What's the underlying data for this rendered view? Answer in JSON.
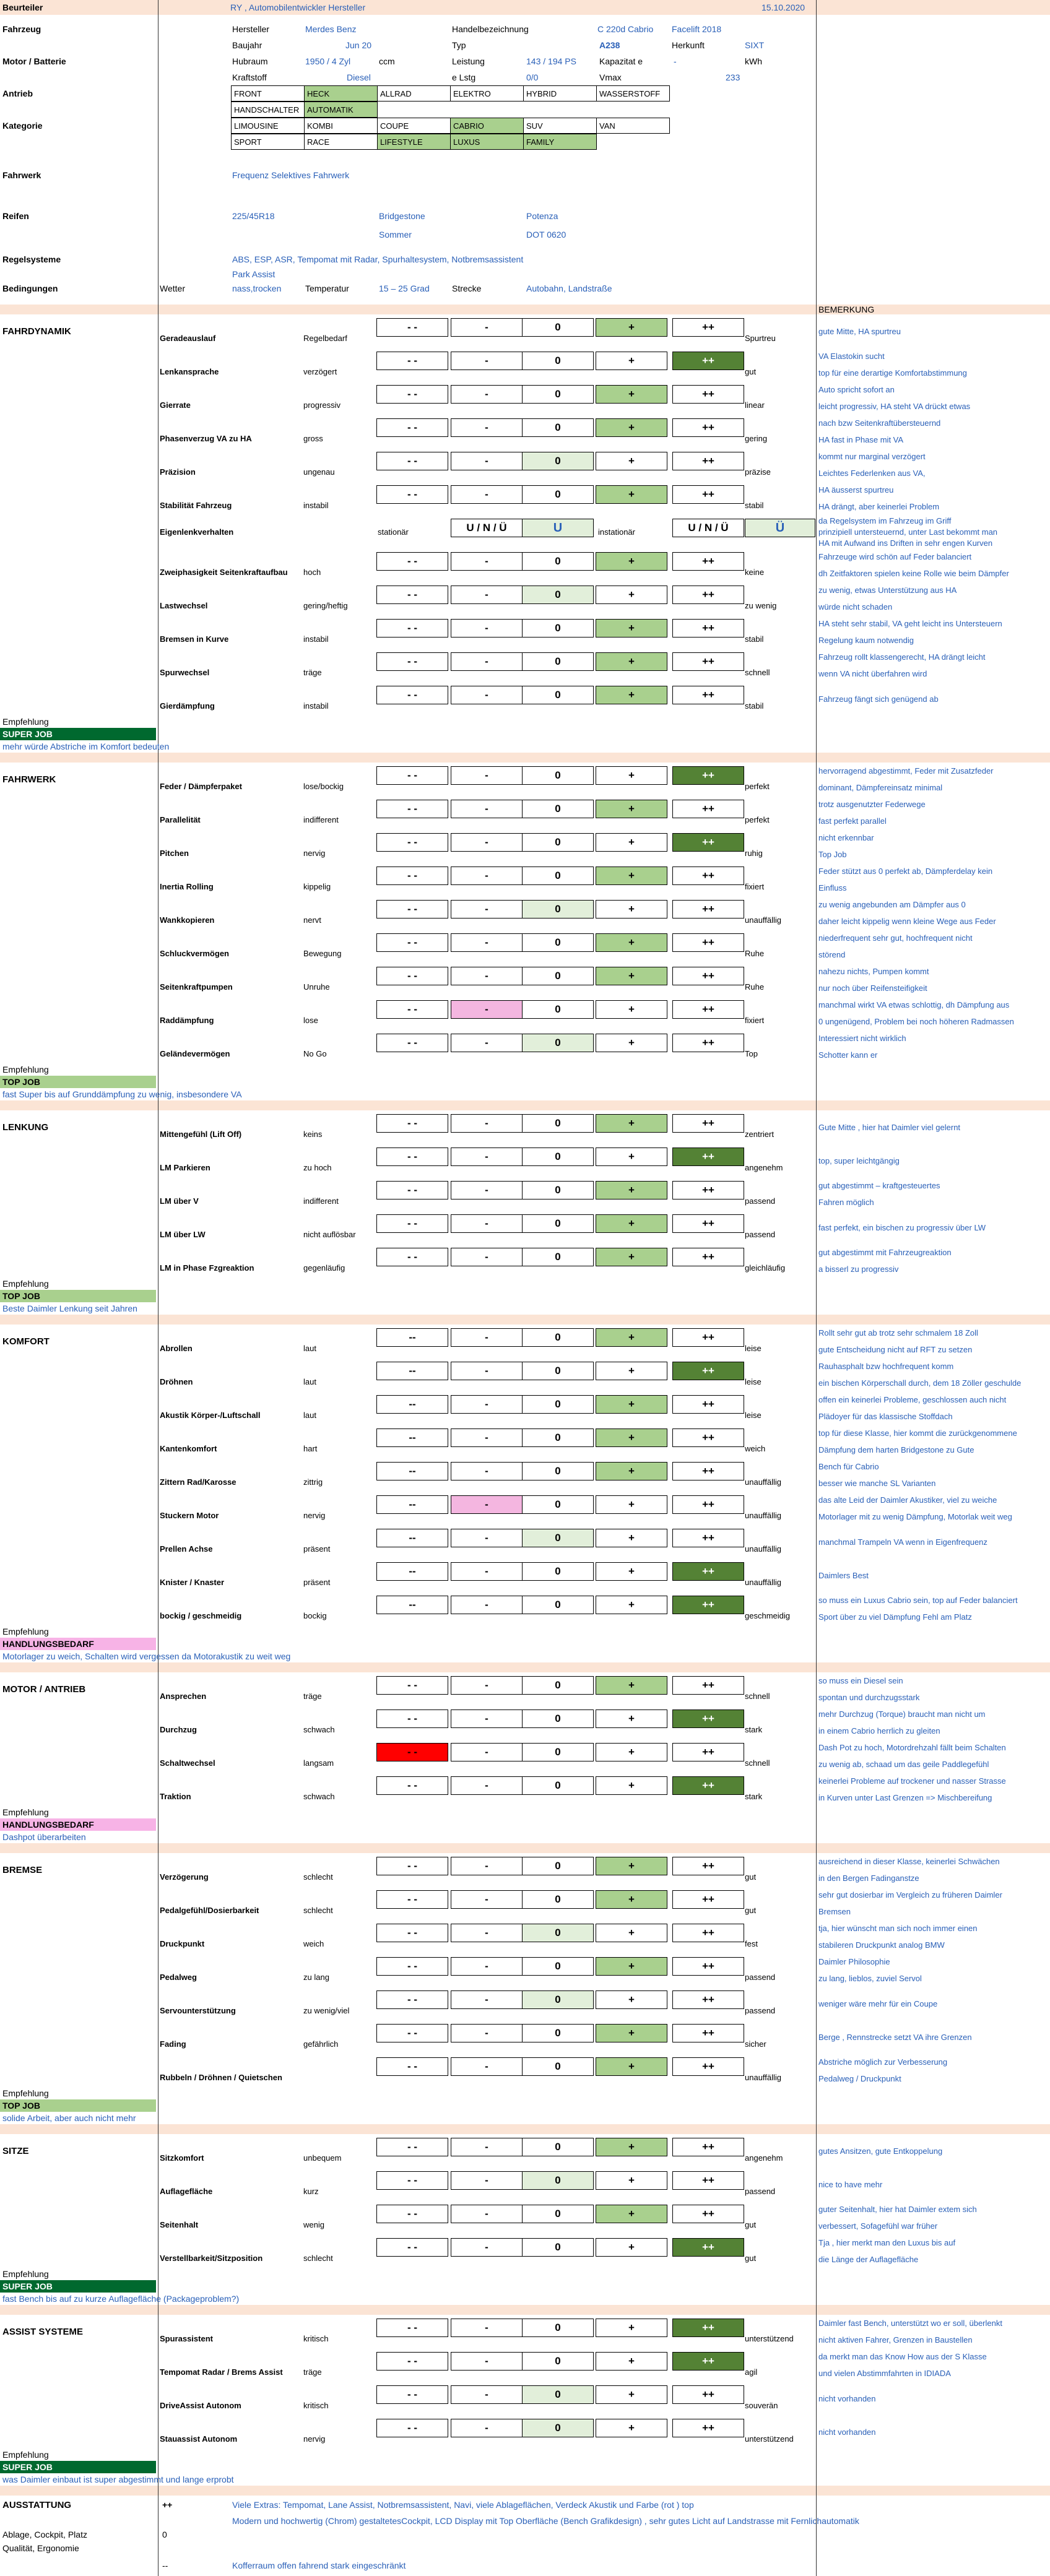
{
  "header": {
    "evaluator_label": "Beurteiler",
    "evaluator_value": "RY , Automobilentwickler Hersteller",
    "date": "15.10.2020"
  },
  "vehicle": {
    "fahrzeug_label": "Fahrzeug",
    "hersteller_label": "Hersteller",
    "hersteller_value": "Merdes Benz",
    "handelsbez_label": "Handelbezeichnung",
    "handelsbez_value": "C 220d Cabrio",
    "handelsbez_extra": "Facelift 2018",
    "baujahr_label": "Baujahr",
    "baujahr_value": "Jun 20",
    "typ_label": "Typ",
    "typ_value": "A238",
    "herkunft_label": "Herkunft",
    "herkunft_value": "SIXT",
    "motor_label": "Motor / Batterie",
    "hubraum_label": "Hubraum",
    "hubraum_value": "1950 / 4 Zyl",
    "hubraum_unit": "ccm",
    "leistung_label": "Leistung",
    "leistung_value": "143 / 194 PS",
    "kapazitaet_label": "Kapazitat e",
    "kapazitaet_value": "-",
    "kapazitaet_unit": "kWh",
    "kraftstoff_label": "Kraftstoff",
    "kraftstoff_value": "Diesel",
    "elstg_label": "e Lstg",
    "elstg_value": "0/0",
    "vmax_label": "Vmax",
    "vmax_value": "233",
    "antrieb_label": "Antrieb",
    "antrieb_row1": [
      "FRONT",
      "HECK",
      "ALLRAD",
      "ELEKTRO",
      "HYBRID",
      "WASSERSTOFF"
    ],
    "antrieb_row2": [
      "HANDSCHALTER",
      "AUTOMATIK"
    ],
    "kategorie_label": "Kategorie",
    "kategorie_row1": [
      "LIMOUSINE",
      "KOMBI",
      "COUPE",
      "CABRIO",
      "SUV",
      "VAN"
    ],
    "kategorie_row2": [
      "SPORT",
      "RACE",
      "LIFESTYLE",
      "LUXUS",
      "FAMILY"
    ],
    "fahrwerk_label": "Fahrwerk",
    "fahrwerk_value": "Frequenz Selektives Fahrwerk",
    "reifen_label": "Reifen",
    "reifen_size": "225/45R18",
    "reifen_brand": "Bridgestone",
    "reifen_model": "Potenza",
    "reifen_season": "Sommer",
    "reifen_dot": "DOT 0620",
    "regel_label": "Regelsysteme",
    "regel_value": "ABS, ESP, ASR, Tempomat mit Radar, Spurhaltesystem, Notbremsassistent",
    "regel_value2": "Park Assist",
    "bed_label": "Bedingungen",
    "wetter_label": "Wetter",
    "wetter_value": "nass,trocken",
    "temp_label": "Temperatur",
    "temp_value": "15 – 25 Grad",
    "strecke_label": "Strecke",
    "strecke_value": "Autobahn, Landstraße"
  },
  "scale": {
    "mm": "- -",
    "m": "-",
    "z": "0",
    "p": "+",
    "pp": "++"
  },
  "remarks_header": "BEMERKUNG",
  "sections": [
    {
      "title": "FAHRDYNAMIK",
      "rows": [
        {
          "name": "Geradeauslauf",
          "neg": "Regelbedarf",
          "score": "p",
          "pos": "Spurtreu",
          "notes": [
            "gute Mitte, HA spurtreu"
          ]
        },
        {
          "name": "Lenkansprache",
          "neg": "verzögert",
          "score": "pp",
          "pos": "gut",
          "notes": [
            "VA Elastokin sucht",
            "top für eine derartige Komfortabstimmung"
          ]
        },
        {
          "name": "Gierrate",
          "neg": "progressiv",
          "score": "p",
          "pos": "linear",
          "notes": [
            "Auto spricht sofort an",
            "leicht progressiv, HA steht VA drückt etwas"
          ]
        },
        {
          "name": "Phasenverzug VA zu HA",
          "neg": "gross",
          "score": "p",
          "pos": "gering",
          "notes": [
            "nach bzw Seitenkraftübersteuernd",
            "HA fast in Phase mit VA"
          ]
        },
        {
          "name": "Präzision",
          "neg": "ungenau",
          "score": "z",
          "pos": "präzise",
          "notes": [
            "kommt nur marginal verzögert",
            "Leichtes Federlenken aus VA,"
          ]
        },
        {
          "name": "Stabilität Fahrzeug",
          "neg": "instabil",
          "score": "p",
          "pos": "stabil",
          "notes": [
            "HA äusserst spurtreu",
            "HA drängt, aber keinerlei Problem"
          ]
        },
        {
          "name": "Eigenlenkverhalten",
          "special": true,
          "neg": "stationär",
          "uno": "U / N / Ü",
          "uval": "U",
          "mid": "instationär",
          "uno2": "U / N / Ü",
          "uval2": "Ü",
          "notes": [
            "da Regelsystem im Fahrzeug im Griff",
            "prinzipiell untersteuernd, unter Last bekommt man",
            "HA mit Aufwand ins Driften in sehr engen Kurven"
          ]
        },
        {
          "name": "Zweiphasigkeit Seitenkraftaufbau",
          "neg": "hoch",
          "score": "p",
          "pos": "keine",
          "notes": [
            "Fahrzeuge wird schön auf Feder balanciert",
            "dh Zeitfaktoren spielen keine Rolle wie beim Dämpfer"
          ]
        },
        {
          "name": "Lastwechsel",
          "neg": "gering/heftig",
          "score": "z",
          "pos": "zu wenig",
          "notes": [
            "zu wenig, etwas Unterstützung aus HA",
            "würde nicht schaden"
          ]
        },
        {
          "name": "Bremsen in Kurve",
          "neg": "instabil",
          "score": "p",
          "pos": "stabil",
          "notes": [
            "HA steht sehr stabil, VA geht leicht ins Untersteuern",
            "Regelung kaum notwendig"
          ]
        },
        {
          "name": "Spurwechsel",
          "neg": "träge",
          "score": "p",
          "pos": "schnell",
          "notes": [
            "Fahrzeug rollt klassengerecht, HA drängt leicht",
            "wenn VA nicht überfahren wird"
          ]
        },
        {
          "name": "Gierdämpfung",
          "neg": "instabil",
          "score": "p",
          "pos": "stabil",
          "notes": [
            "Fahrzeug fängt sich genügend ab"
          ]
        }
      ],
      "rec_label": "Empfehlung",
      "rec_tag": "SUPER JOB",
      "rec_class": "tag-super",
      "rec_note": "mehr würde Abstriche im Komfort bedeuten"
    },
    {
      "title": "FAHRWERK",
      "rows": [
        {
          "name": "Feder / Dämpferpaket",
          "neg": "lose/bockig",
          "score": "pp",
          "pos": "perfekt",
          "notes": [
            "hervorragend abgestimmt, Feder mit Zusatzfeder",
            "dominant, Dämpfereinsatz minimal"
          ]
        },
        {
          "name": "Parallelität",
          "neg": "indifferent",
          "score": "p",
          "pos": "perfekt",
          "notes": [
            "trotz ausgenutzter Federwege",
            "fast perfekt parallel"
          ]
        },
        {
          "name": "Pitchen",
          "neg": "nervig",
          "score": "pp",
          "pos": "ruhig",
          "notes": [
            "nicht erkennbar",
            "Top Job"
          ]
        },
        {
          "name": "Inertia Rolling",
          "neg": "kippelig",
          "score": "p",
          "pos": "fixiert",
          "notes": [
            "Feder stützt aus 0 perfekt ab, Dämpferdelay kein",
            "Einfluss"
          ]
        },
        {
          "name": "Wankkopieren",
          "neg": "nervt",
          "score": "z",
          "pos": "unauffällig",
          "notes": [
            "zu wenig angebunden am Dämpfer aus 0",
            "daher leicht kippelig wenn kleine Wege aus Feder"
          ]
        },
        {
          "name": "Schluckvermögen",
          "neg": "Bewegung",
          "score": "p",
          "pos": "Ruhe",
          "notes": [
            "niederfrequent sehr gut, hochfrequent nicht",
            "störend"
          ]
        },
        {
          "name": "Seitenkraftpumpen",
          "neg": "Unruhe",
          "score": "p",
          "pos": "Ruhe",
          "notes": [
            "nahezu nichts, Pumpen kommt",
            "nur noch über Reifensteifigkeit"
          ]
        },
        {
          "name": "Raddämpfung",
          "neg": "lose",
          "score": "m_pink",
          "pos": "fixiert",
          "notes": [
            "manchmal wirkt VA etwas schlottig, dh Dämpfung aus",
            "0 ungenügend, Problem bei noch höheren Radmassen"
          ]
        },
        {
          "name": "Geländevermögen",
          "neg": "No Go",
          "score": "z",
          "pos": "Top",
          "notes": [
            "Interessiert nicht wirklich",
            "Schotter kann er"
          ]
        }
      ],
      "rec_label": "Empfehlung",
      "rec_tag": "TOP JOB",
      "rec_class": "tag-top",
      "rec_note": "fast Super bis auf Grunddämpfung zu wenig, insbesondere VA"
    },
    {
      "title": "LENKUNG",
      "rows": [
        {
          "name": "Mittengefühl (Lift Off)",
          "neg": "keins",
          "score": "p",
          "pos": "zentriert",
          "notes": [
            "Gute Mitte , hier hat Daimler viel gelernt"
          ]
        },
        {
          "name": "LM Parkieren",
          "neg": "zu hoch",
          "score": "pp",
          "pos": "angenehm",
          "notes": [
            "top, super leichtgängig"
          ]
        },
        {
          "name": "LM über V",
          "neg": "indifferent",
          "score": "p",
          "pos": "passend",
          "notes": [
            "gut abgestimmt – kraftgesteuertes",
            "Fahren möglich"
          ]
        },
        {
          "name": "LM über LW",
          "neg": "nicht auflösbar",
          "score": "p",
          "pos": "passend",
          "notes": [
            "fast perfekt, ein bischen zu progressiv über LW"
          ]
        },
        {
          "name": "LM in Phase Fzgreaktion",
          "neg": "gegenläufig",
          "score": "p",
          "pos": "gleichläufig",
          "notes": [
            "gut abgestimmt mit Fahrzeugreaktion",
            "a bisserl zu progressiv"
          ]
        }
      ],
      "rec_label": "Empfehlung",
      "rec_tag": "TOP JOB",
      "rec_class": "tag-top",
      "rec_note": "Beste Daimler Lenkung seit Jahren"
    },
    {
      "title": "KOMFORT",
      "rows": [
        {
          "name": "Abrollen",
          "neg": "laut",
          "score": "p",
          "pos": "leise",
          "mm": "--",
          "notes": [
            "Rollt sehr gut ab trotz sehr schmalem 18 Zoll",
            "gute Entscheidung nicht auf RFT zu setzen"
          ]
        },
        {
          "name": "Dröhnen",
          "neg": "laut",
          "score": "pp",
          "pos": "leise",
          "mm": "--",
          "notes": [
            "Rauhasphalt bzw hochfrequent komm",
            "ein bischen Körperschall durch, dem 18 Zöller geschulde"
          ]
        },
        {
          "name": "Akustik Körper-/Luftschall",
          "neg": "laut",
          "score": "p",
          "pos": "leise",
          "mm": "--",
          "notes": [
            "offen ein keinerlei Probleme, geschlossen auch nicht",
            "Plädoyer für das klassische Stoffdach"
          ]
        },
        {
          "name": "Kantenkomfort",
          "neg": "hart",
          "score": "p",
          "pos": "weich",
          "mm": "--",
          "notes": [
            "top für diese Klasse, hier kommt die zurückgenommene",
            "Dämpfung dem harten Bridgestone zu Gute"
          ]
        },
        {
          "name": "Zittern Rad/Karosse",
          "neg": "zittrig",
          "score": "p",
          "pos": "unauffällig",
          "mm": "--",
          "notes": [
            "Bench für Cabrio",
            "besser wie manche SL Varianten"
          ]
        },
        {
          "name": "Stuckern Motor",
          "neg": "nervig",
          "score": "m_pink",
          "pos": "unauffällig",
          "mm": "--",
          "notes": [
            "das alte Leid der Daimler Akustiker, viel zu weiche",
            "Motorlager mit zu wenig Dämpfung, Motorlak weit weg"
          ]
        },
        {
          "name": "Prellen Achse",
          "neg": "präsent",
          "score": "z",
          "pos": "unauffällig",
          "mm": "--",
          "notes": [
            "manchmal Trampeln VA wenn in Eigenfrequenz"
          ]
        },
        {
          "name": "Knister / Knaster",
          "neg": "präsent",
          "score": "pp",
          "pos": "unauffällig",
          "mm": "--",
          "notes": [
            "Daimlers Best"
          ]
        },
        {
          "name": "bockig / geschmeidig",
          "neg": "bockig",
          "score": "pp",
          "pos": "geschmeidig",
          "mm": "--",
          "notes": [
            "so muss ein Luxus Cabrio sein, top auf Feder balanciert",
            "Sport über zu viel Dämpfung Fehl am Platz"
          ]
        }
      ],
      "rec_label": "Empfehlung",
      "rec_tag": "HANDLUNGSBEDARF",
      "rec_class": "tag-hand",
      "rec_note": "Motorlager zu weich, Schalten wird vergessen da Motorakustik zu weit weg"
    },
    {
      "title": "MOTOR / ANTRIEB",
      "rows": [
        {
          "name": "Ansprechen",
          "neg": "träge",
          "score": "p",
          "pos": "schnell",
          "notes": [
            "so muss ein Diesel sein",
            "spontan und durchzugsstark"
          ]
        },
        {
          "name": "Durchzug",
          "neg": "schwach",
          "score": "pp",
          "pos": "stark",
          "notes": [
            "mehr Durchzug (Torque) braucht man nicht um",
            "in einem Cabrio herrlich zu gleiten"
          ]
        },
        {
          "name": "Schaltwechsel",
          "neg": "langsam",
          "score": "mm_red",
          "pos": "schnell",
          "notes": [
            "Dash Pot zu hoch, Motordrehzahl fällt beim Schalten",
            "zu wenig ab, schaad um das geile Paddlegefühl"
          ]
        },
        {
          "name": "Traktion",
          "neg": "schwach",
          "score": "pp",
          "pos": "stark",
          "notes": [
            "keinerlei Probleme auf trockener und nasser Strasse",
            "in Kurven unter Last Grenzen => Mischbereifung"
          ]
        }
      ],
      "rec_label": "Empfehlung",
      "rec_tag": "HANDLUNGSBEDARF",
      "rec_class": "tag-hand",
      "rec_note": "Dashpot überarbeiten"
    },
    {
      "title": "BREMSE",
      "rows": [
        {
          "name": "Verzögerung",
          "neg": "schlecht",
          "score": "p",
          "pos": "gut",
          "notes": [
            "ausreichend in dieser Klasse, keinerlei Schwächen",
            "in den Bergen Fadinganstze"
          ]
        },
        {
          "name": "Pedalgefühl/Dosierbarkeit",
          "neg": "schlecht",
          "score": "p",
          "pos": "gut",
          "notes": [
            "sehr gut dosierbar im Vergleich zu früheren Daimler",
            "Bremsen"
          ]
        },
        {
          "name": "Druckpunkt",
          "neg": "weich",
          "score": "z",
          "pos": "fest",
          "notes": [
            "tja, hier wünscht man sich noch immer einen",
            "stabileren Druckpunkt analog BMW"
          ]
        },
        {
          "name": "Pedalweg",
          "neg": "zu lang",
          "score": "p",
          "pos": "passend",
          "notes": [
            "Daimler Philosophie",
            "zu lang, lieblos, zuviel Servol"
          ]
        },
        {
          "name": "Servounterstützung",
          "neg": "zu wenig/viel",
          "score": "z",
          "pos": "passend",
          "notes": [
            "weniger wäre mehr für ein Coupe"
          ]
        },
        {
          "name": "Fading",
          "neg": "gefährlich",
          "score": "p",
          "pos": "sicher",
          "notes": [
            "Berge , Rennstrecke setzt VA ihre Grenzen"
          ]
        },
        {
          "name": "Rubbeln / Dröhnen / Quietschen",
          "neg": "",
          "score": "p",
          "pos": "unauffällig",
          "notes": [
            "Abstriche möglich zur Verbesserung",
            "Pedalweg / Druckpunkt"
          ]
        }
      ],
      "rec_label": "Empfehlung",
      "rec_tag": "TOP JOB",
      "rec_class": "tag-top",
      "rec_note": "solide Arbeit, aber auch nicht mehr"
    },
    {
      "title": "SITZE",
      "rows": [
        {
          "name": "Sitzkomfort",
          "neg": "unbequem",
          "score": "p",
          "pos": "angenehm",
          "notes": [
            "gutes Ansitzen, gute Entkoppelung"
          ]
        },
        {
          "name": "Auflagefläche",
          "neg": "kurz",
          "score": "z",
          "pos": "passend",
          "notes": [
            "nice to have mehr"
          ]
        },
        {
          "name": "Seitenhalt",
          "neg": "wenig",
          "score": "p",
          "pos": "gut",
          "notes": [
            "guter Seitenhalt, hier hat Daimler extem sich",
            "verbessert, Sofagefühl war früher"
          ]
        },
        {
          "name": "Verstellbarkeit/Sitzposition",
          "neg": "schlecht",
          "score": "pp",
          "pos": "gut",
          "notes": [
            "Tja , hier merkt man den Luxus bis auf",
            "die Länge der Auflagefläche"
          ]
        }
      ],
      "rec_label": "Empfehlung",
      "rec_tag": "SUPER JOB",
      "rec_class": "tag-super",
      "rec_note": "fast Bench bis auf zu kurze Auflagefläche (Packageproblem?)"
    },
    {
      "title": "ASSIST SYSTEME",
      "rows": [
        {
          "name": "Spurassistent",
          "neg": "kritisch",
          "score": "pp",
          "pos": "unterstützend",
          "notes": [
            "Daimler fast Bench, unterstützt wo er soll, überlenkt",
            "nicht aktiven Fahrer, Grenzen in Baustellen"
          ]
        },
        {
          "name": "Tempomat Radar / Brems Assist",
          "neg": "träge",
          "score": "pp",
          "pos": "agil",
          "notes": [
            "da merkt man das Know How aus der S Klasse",
            "und vielen Abstimmfahrten in IDIADA"
          ]
        },
        {
          "name": "DriveAssist Autonom",
          "neg": "kritisch",
          "score": "z",
          "pos": "souverän",
          "notes": [
            "nicht vorhanden"
          ]
        },
        {
          "name": "Stauassist Autonom",
          "neg": "nervig",
          "score": "z",
          "pos": "unterstützend",
          "notes": [
            "nicht vorhanden"
          ]
        }
      ],
      "rec_label": "Empfehlung",
      "rec_tag": "SUPER JOB",
      "rec_class": "tag-super",
      "rec_note": "was Daimler einbaut ist super abgestimmt und lange erprobt"
    }
  ],
  "ausstattung": {
    "title": "AUSSTATTUNG",
    "score": "++",
    "line1": "Viele Extras: Tempomat, Lane Assist,  Notbremsassistent, Navi,  viele Ablageflächen, Verdeck Akustik und Farbe  (rot ) top",
    "line2": "Modern und hochwertig (Chrom) gestaltetesCockpit, LCD Display mit Top Oberfläche (Bench Grafikdesign) , sehr  gutes Licht auf Landstrasse mit Fernlichautomatik",
    "ablage_label": "Ablage, Cockpit, Platz",
    "ablage_value": "0",
    "quali_label": "Qualität, Ergonomie",
    "koffer_score": "--",
    "koffer_note": "Kofferraum offen fahrend stark eingeschränkt"
  }
}
